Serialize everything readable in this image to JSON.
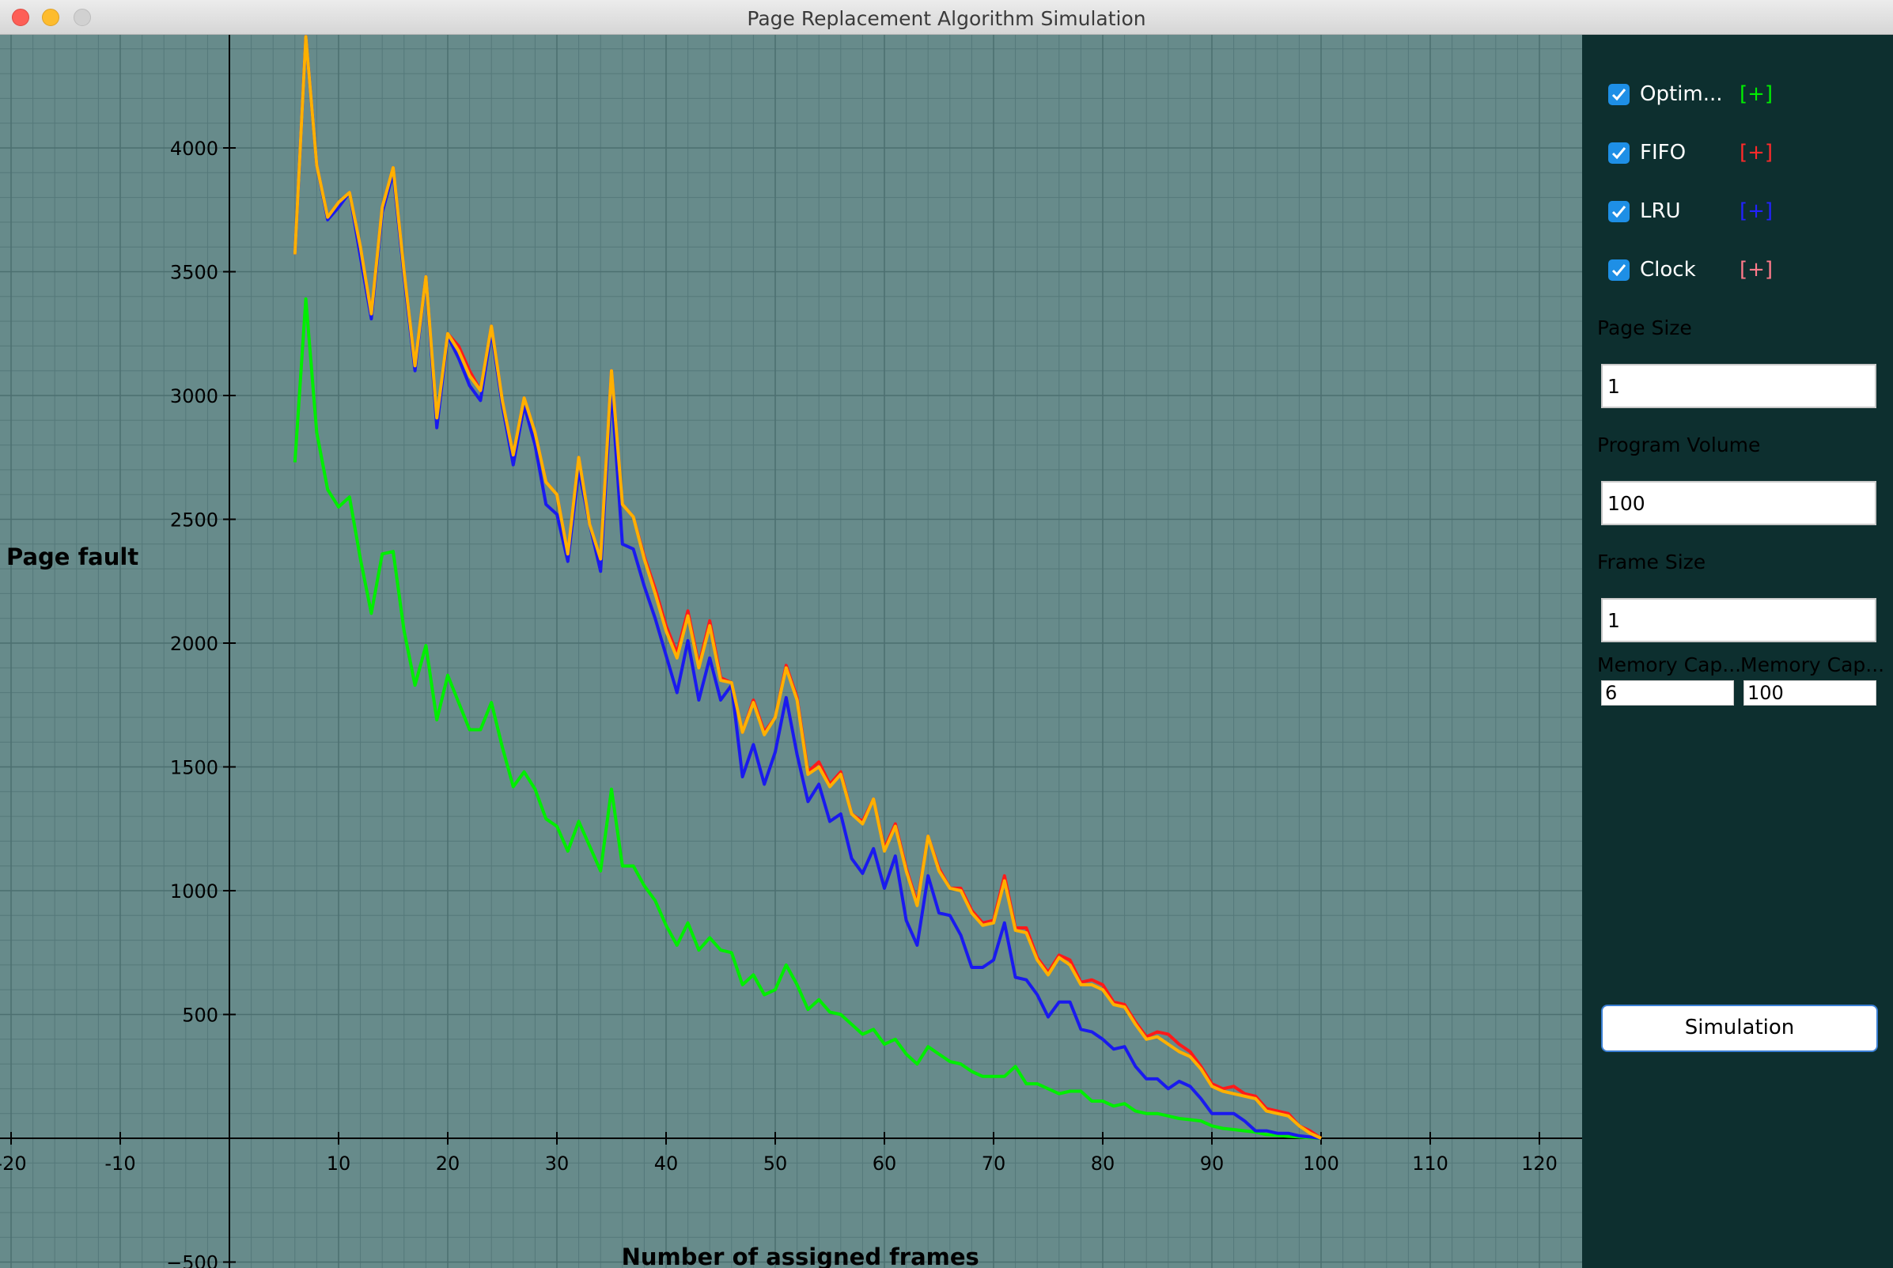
{
  "window": {
    "title": "Page Replacement Algorithm Simulation"
  },
  "sidebar": {
    "algorithms": [
      {
        "label": "Optim...",
        "plus": "[+]",
        "checked": true,
        "color": "#00ff00"
      },
      {
        "label": "FIFO",
        "plus": "[+]",
        "checked": true,
        "color": "#ff1a1a"
      },
      {
        "label": "LRU",
        "plus": "[+]",
        "checked": true,
        "color": "#1a1aff"
      },
      {
        "label": "Clock",
        "plus": "[+]",
        "checked": true,
        "color": "#ff7a8a"
      }
    ],
    "page_size": {
      "label": "Page Size",
      "value": "1"
    },
    "program_volume": {
      "label": "Program Volume",
      "value": "100"
    },
    "frame_size": {
      "label": "Frame Size",
      "value": "1"
    },
    "memory_cap_min": {
      "label": "Memory Cap...",
      "value": "6"
    },
    "memory_cap_max": {
      "label": "Memory Cap...",
      "value": "100"
    },
    "simulation_button": "Simulation"
  },
  "chart_data": {
    "type": "line",
    "xlabel": "Number of assigned frames",
    "ylabel": "Page fault",
    "xlim": [
      -21,
      125
    ],
    "ylim": [
      -660,
      4400
    ],
    "x_ticks": [
      -20,
      -10,
      10,
      20,
      30,
      40,
      50,
      60,
      70,
      80,
      90,
      100,
      110,
      120
    ],
    "x_tick_labels": [
      "-20",
      "-10",
      "10",
      "20",
      "30",
      "40",
      "50",
      "60",
      "70",
      "80",
      "90",
      "100",
      "110",
      "120"
    ],
    "y_ticks": [
      -500,
      500,
      1000,
      1500,
      2000,
      2500,
      3000,
      3500,
      4000
    ],
    "y_tick_labels": [
      "−500",
      "500",
      "1000",
      "1500",
      "2000",
      "2500",
      "3000",
      "3500",
      "4000"
    ],
    "grid": true,
    "background": "#678b8b",
    "series": [
      {
        "name": "Optim...",
        "color": "#00ee00",
        "x": [
          6,
          7,
          8,
          9,
          10,
          11,
          12,
          13,
          14,
          15,
          16,
          17,
          18,
          19,
          20,
          21,
          22,
          23,
          24,
          25,
          26,
          27,
          28,
          29,
          30,
          31,
          32,
          33,
          34,
          35,
          36,
          37,
          38,
          39,
          40,
          41,
          42,
          43,
          44,
          45,
          46,
          47,
          48,
          49,
          50,
          51,
          52,
          53,
          54,
          55,
          56,
          57,
          58,
          59,
          60,
          61,
          62,
          63,
          64,
          65,
          66,
          67,
          68,
          69,
          70,
          71,
          72,
          73,
          74,
          75,
          76,
          77,
          78,
          79,
          80,
          81,
          82,
          83,
          84,
          85,
          86,
          87,
          88,
          89,
          90,
          91,
          92,
          93,
          94,
          95,
          96,
          97,
          98,
          99,
          100
        ],
        "y": [
          2730,
          3390,
          2850,
          2620,
          2550,
          2590,
          2340,
          2120,
          2360,
          2370,
          2050,
          1830,
          1990,
          1690,
          1870,
          1760,
          1650,
          1650,
          1760,
          1580,
          1420,
          1480,
          1410,
          1290,
          1260,
          1160,
          1280,
          1180,
          1080,
          1410,
          1100,
          1100,
          1020,
          960,
          860,
          780,
          870,
          760,
          810,
          760,
          750,
          620,
          660,
          580,
          600,
          700,
          620,
          520,
          560,
          510,
          500,
          460,
          420,
          440,
          380,
          400,
          340,
          300,
          370,
          340,
          310,
          300,
          270,
          250,
          250,
          250,
          290,
          220,
          220,
          200,
          180,
          190,
          190,
          150,
          150,
          130,
          140,
          110,
          100,
          100,
          90,
          80,
          75,
          70,
          50,
          40,
          35,
          30,
          25,
          15,
          12,
          8,
          5,
          2,
          0
        ]
      },
      {
        "name": "FIFO",
        "color": "#ff1a1a",
        "x": [
          6,
          7,
          8,
          9,
          10,
          11,
          12,
          13,
          14,
          15,
          16,
          17,
          18,
          19,
          20,
          21,
          22,
          23,
          24,
          25,
          26,
          27,
          28,
          29,
          30,
          31,
          32,
          33,
          34,
          35,
          36,
          37,
          38,
          39,
          40,
          41,
          42,
          43,
          44,
          45,
          46,
          47,
          48,
          49,
          50,
          51,
          52,
          53,
          54,
          55,
          56,
          57,
          58,
          59,
          60,
          61,
          62,
          63,
          64,
          65,
          66,
          67,
          68,
          69,
          70,
          71,
          72,
          73,
          74,
          75,
          76,
          77,
          78,
          79,
          80,
          81,
          82,
          83,
          84,
          85,
          86,
          87,
          88,
          89,
          90,
          91,
          92,
          93,
          94,
          95,
          96,
          97,
          98,
          99,
          100
        ],
        "y": [
          3570,
          4450,
          3930,
          3720,
          3780,
          3820,
          3600,
          3330,
          3760,
          3920,
          3500,
          3120,
          3480,
          2900,
          3250,
          3200,
          3100,
          3020,
          3280,
          2980,
          2760,
          2990,
          2850,
          2650,
          2600,
          2360,
          2750,
          2480,
          2340,
          3100,
          2560,
          2510,
          2350,
          2220,
          2070,
          1960,
          2130,
          1910,
          2090,
          1860,
          1840,
          1640,
          1770,
          1640,
          1700,
          1910,
          1780,
          1480,
          1520,
          1430,
          1480,
          1310,
          1280,
          1370,
          1170,
          1270,
          1090,
          950,
          1220,
          1090,
          1010,
          1010,
          920,
          870,
          880,
          1060,
          850,
          850,
          730,
          670,
          740,
          720,
          630,
          640,
          620,
          550,
          540,
          470,
          410,
          430,
          420,
          380,
          350,
          290,
          220,
          200,
          210,
          180,
          170,
          120,
          110,
          100,
          50,
          30,
          0
        ]
      },
      {
        "name": "LRU",
        "color": "#1a1aee",
        "x": [
          6,
          7,
          8,
          9,
          10,
          11,
          12,
          13,
          14,
          15,
          16,
          17,
          18,
          19,
          20,
          21,
          22,
          23,
          24,
          25,
          26,
          27,
          28,
          29,
          30,
          31,
          32,
          33,
          34,
          35,
          36,
          37,
          38,
          39,
          40,
          41,
          42,
          43,
          44,
          45,
          46,
          47,
          48,
          49,
          50,
          51,
          52,
          53,
          54,
          55,
          56,
          57,
          58,
          59,
          60,
          61,
          62,
          63,
          64,
          65,
          66,
          67,
          68,
          69,
          70,
          71,
          72,
          73,
          74,
          75,
          76,
          77,
          78,
          79,
          80,
          81,
          82,
          83,
          84,
          85,
          86,
          87,
          88,
          89,
          90,
          91,
          92,
          93,
          94,
          95,
          96,
          97,
          98,
          99,
          100
        ],
        "y": [
          3570,
          4450,
          3930,
          3710,
          3760,
          3820,
          3560,
          3310,
          3740,
          3900,
          3480,
          3100,
          3480,
          2870,
          3240,
          3150,
          3040,
          2980,
          3260,
          2960,
          2720,
          2960,
          2800,
          2560,
          2520,
          2330,
          2700,
          2480,
          2290,
          3030,
          2400,
          2380,
          2230,
          2100,
          1950,
          1800,
          2010,
          1770,
          1940,
          1770,
          1830,
          1460,
          1590,
          1430,
          1560,
          1780,
          1550,
          1360,
          1430,
          1280,
          1310,
          1130,
          1070,
          1170,
          1010,
          1140,
          880,
          780,
          1060,
          910,
          900,
          820,
          690,
          690,
          720,
          870,
          650,
          640,
          580,
          490,
          550,
          550,
          440,
          430,
          400,
          360,
          370,
          290,
          240,
          240,
          200,
          230,
          210,
          160,
          100,
          100,
          100,
          70,
          30,
          30,
          20,
          20,
          10,
          5,
          0
        ]
      },
      {
        "name": "Clock",
        "color": "#ffb000",
        "x": [
          6,
          7,
          8,
          9,
          10,
          11,
          12,
          13,
          14,
          15,
          16,
          17,
          18,
          19,
          20,
          21,
          22,
          23,
          24,
          25,
          26,
          27,
          28,
          29,
          30,
          31,
          32,
          33,
          34,
          35,
          36,
          37,
          38,
          39,
          40,
          41,
          42,
          43,
          44,
          45,
          46,
          47,
          48,
          49,
          50,
          51,
          52,
          53,
          54,
          55,
          56,
          57,
          58,
          59,
          60,
          61,
          62,
          63,
          64,
          65,
          66,
          67,
          68,
          69,
          70,
          71,
          72,
          73,
          74,
          75,
          76,
          77,
          78,
          79,
          80,
          81,
          82,
          83,
          84,
          85,
          86,
          87,
          88,
          89,
          90,
          91,
          92,
          93,
          94,
          95,
          96,
          97,
          98,
          99,
          100
        ],
        "y": [
          3570,
          4450,
          3930,
          3720,
          3780,
          3820,
          3600,
          3330,
          3760,
          3920,
          3500,
          3120,
          3480,
          2910,
          3250,
          3180,
          3080,
          3020,
          3280,
          2980,
          2760,
          2990,
          2850,
          2650,
          2600,
          2360,
          2750,
          2480,
          2340,
          3100,
          2560,
          2510,
          2340,
          2200,
          2050,
          1940,
          2110,
          1900,
          2070,
          1850,
          1840,
          1640,
          1760,
          1630,
          1700,
          1900,
          1770,
          1470,
          1500,
          1420,
          1470,
          1310,
          1270,
          1370,
          1160,
          1260,
          1080,
          940,
          1220,
          1080,
          1010,
          1000,
          910,
          860,
          870,
          1040,
          840,
          830,
          720,
          660,
          730,
          700,
          620,
          620,
          600,
          540,
          530,
          460,
          400,
          410,
          380,
          350,
          330,
          280,
          210,
          190,
          180,
          170,
          160,
          110,
          100,
          90,
          50,
          20,
          0
        ]
      }
    ]
  }
}
